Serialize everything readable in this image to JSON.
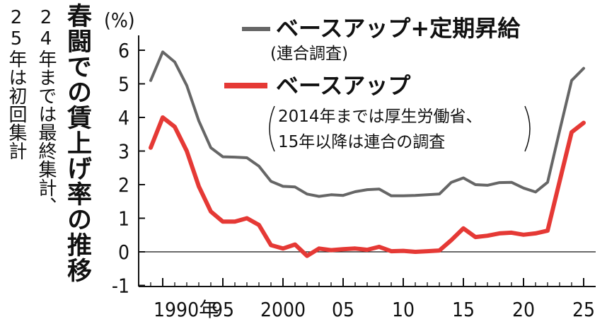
{
  "title": "春闘での賃上げ率の推移",
  "notes": [
    "24年までは最終集計、",
    "25年は初回集計"
  ],
  "chart_data": {
    "type": "line",
    "unit_label": "(%)",
    "x_range": [
      1989,
      2025
    ],
    "ylim": [
      -1,
      6
    ],
    "y_ticks": [
      6,
      5,
      4,
      3,
      2,
      1,
      0,
      -1
    ],
    "x_ticks": [
      {
        "x": 1990,
        "label": "1990年"
      },
      {
        "x": 1995,
        "label": "95"
      },
      {
        "x": 2000,
        "label": "2000"
      },
      {
        "x": 2005,
        "label": "05"
      },
      {
        "x": 2010,
        "label": "10"
      },
      {
        "x": 2015,
        "label": "15"
      },
      {
        "x": 2020,
        "label": "20"
      },
      {
        "x": 2025,
        "label": "25"
      }
    ],
    "x": [
      1989,
      1990,
      1991,
      1992,
      1993,
      1994,
      1995,
      1996,
      1997,
      1998,
      1999,
      2000,
      2001,
      2002,
      2003,
      2004,
      2005,
      2006,
      2007,
      2008,
      2009,
      2010,
      2011,
      2012,
      2013,
      2014,
      2015,
      2016,
      2017,
      2018,
      2019,
      2020,
      2021,
      2022,
      2023,
      2024,
      2025
    ],
    "series": [
      {
        "name": "ベースアップ+定期昇給",
        "source": "(連合調査)",
        "color": "#666666",
        "values": [
          5.1,
          5.95,
          5.65,
          4.95,
          3.9,
          3.1,
          2.83,
          2.82,
          2.8,
          2.55,
          2.1,
          1.95,
          1.93,
          1.72,
          1.65,
          1.7,
          1.68,
          1.79,
          1.85,
          1.87,
          1.67,
          1.67,
          1.68,
          1.7,
          1.72,
          2.07,
          2.2,
          2.0,
          1.98,
          2.06,
          2.07,
          1.9,
          1.78,
          2.07,
          3.6,
          5.1,
          5.46
        ]
      },
      {
        "name": "ベースアップ",
        "source": [
          "2014年までは厚生労働省、",
          "15年以降は連合の調査"
        ],
        "color": "#e53935",
        "values": [
          3.1,
          4.0,
          3.72,
          3.0,
          1.95,
          1.2,
          0.9,
          0.9,
          1.0,
          0.8,
          0.2,
          0.1,
          0.22,
          -0.12,
          0.1,
          0.05,
          0.08,
          0.1,
          0.06,
          0.15,
          0.02,
          0.03,
          0.0,
          0.02,
          0.04,
          0.35,
          0.7,
          0.44,
          0.48,
          0.55,
          0.57,
          0.51,
          0.55,
          0.63,
          2.1,
          3.56,
          3.84
        ]
      }
    ],
    "grid": false,
    "legend_position": "top-right"
  }
}
